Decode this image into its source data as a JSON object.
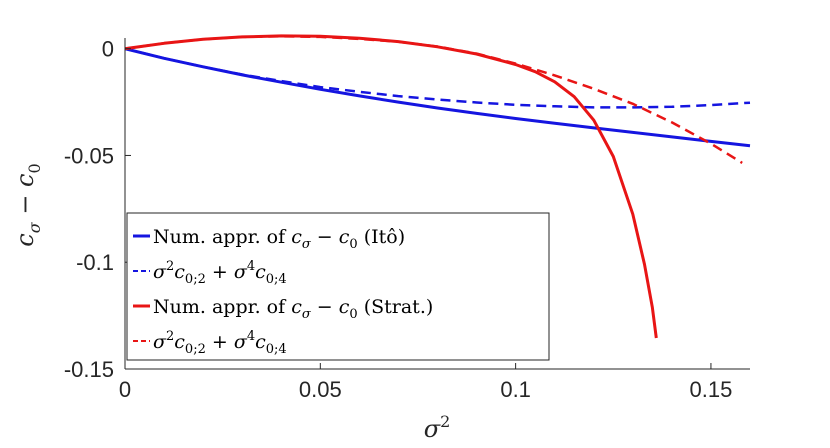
{
  "chart_data": {
    "type": "line",
    "xlabel": "σ²",
    "ylabel": "c_σ − c_0",
    "xlim": [
      0,
      0.16
    ],
    "ylim": [
      -0.15,
      0.005
    ],
    "x_ticks": [
      0,
      0.05,
      0.1,
      0.15
    ],
    "x_tick_labels": [
      "0",
      "0.05",
      "0.1",
      "0.15"
    ],
    "y_ticks": [
      0,
      -0.05,
      -0.1,
      -0.15
    ],
    "y_tick_labels": [
      "0",
      "-0.05",
      "-0.1",
      "-0.15"
    ],
    "grid": false,
    "legend_position": "bottom-left",
    "series": [
      {
        "name": "Num. appr. of c_σ − c_0 (Itô)",
        "color": "#1515e0",
        "style": "solid",
        "x": [
          0,
          0.01,
          0.02,
          0.03,
          0.04,
          0.05,
          0.06,
          0.07,
          0.08,
          0.09,
          0.1,
          0.11,
          0.12,
          0.13,
          0.14,
          0.15,
          0.16
        ],
        "y": [
          0,
          -0.0045,
          -0.0085,
          -0.0123,
          -0.0157,
          -0.019,
          -0.0221,
          -0.025,
          -0.0278,
          -0.0303,
          -0.0327,
          -0.0349,
          -0.0371,
          -0.0392,
          -0.0413,
          -0.0434,
          -0.0455
        ]
      },
      {
        "name": "σ²c_{0;2} + σ⁴c_{0;4}",
        "color": "#1515e0",
        "style": "dashed",
        "x": [
          0,
          0.01,
          0.02,
          0.03,
          0.04,
          0.05,
          0.06,
          0.07,
          0.08,
          0.09,
          0.1,
          0.11,
          0.12,
          0.13,
          0.14,
          0.15,
          0.16
        ],
        "y": [
          0,
          -0.0045,
          -0.0085,
          -0.0121,
          -0.0152,
          -0.018,
          -0.0202,
          -0.0222,
          -0.0238,
          -0.0252,
          -0.0263,
          -0.027,
          -0.0275,
          -0.0275,
          -0.0272,
          -0.0264,
          -0.0253
        ]
      },
      {
        "name": "Num. appr. of c_σ − c_0 (Strat.)",
        "color": "#e81515",
        "style": "solid",
        "x": [
          0,
          0.01,
          0.02,
          0.03,
          0.04,
          0.05,
          0.06,
          0.07,
          0.08,
          0.09,
          0.1,
          0.105,
          0.11,
          0.115,
          0.12,
          0.125,
          0.13,
          0.133,
          0.135,
          0.136
        ],
        "y": [
          0,
          0.0025,
          0.0044,
          0.0055,
          0.006,
          0.0058,
          0.0049,
          0.0033,
          0.0009,
          -0.0025,
          -0.0074,
          -0.0108,
          -0.0155,
          -0.0225,
          -0.0335,
          -0.0505,
          -0.0775,
          -0.101,
          -0.121,
          -0.1355
        ]
      },
      {
        "name": "σ²c_{0;2} + σ⁴c_{0;4}",
        "color": "#e81515",
        "style": "dashed",
        "x": [
          0,
          0.01,
          0.02,
          0.03,
          0.04,
          0.05,
          0.06,
          0.07,
          0.08,
          0.09,
          0.1,
          0.11,
          0.12,
          0.13,
          0.14,
          0.15,
          0.158
        ],
        "y": [
          0,
          0.0025,
          0.0044,
          0.0055,
          0.0058,
          0.0055,
          0.0046,
          0.0032,
          0.001,
          -0.0023,
          -0.007,
          -0.0125,
          -0.0188,
          -0.0258,
          -0.0345,
          -0.0445,
          -0.0535
        ]
      }
    ]
  }
}
